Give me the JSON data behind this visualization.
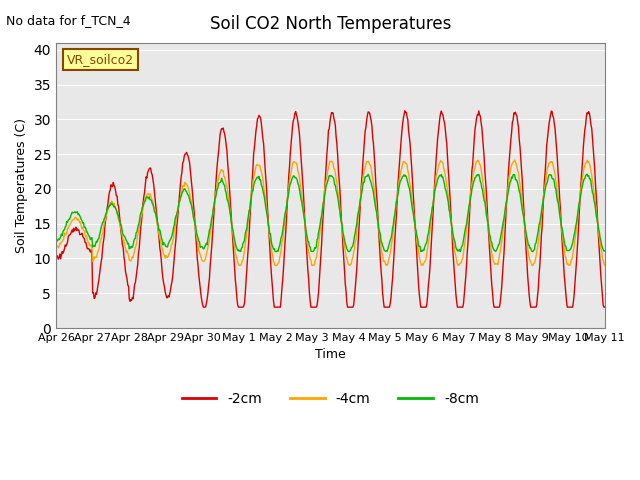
{
  "title": "Soil CO2 North Temperatures",
  "no_data_label": "No data for f_TCN_4",
  "ylabel": "Soil Temperatures (C)",
  "xlabel": "Time",
  "yticks": [
    0,
    5,
    10,
    15,
    20,
    25,
    30,
    35,
    40
  ],
  "ylim": [
    0,
    41
  ],
  "xtick_labels": [
    "Apr 26",
    "Apr 27",
    "Apr 28",
    "Apr 29",
    "Apr 30",
    "May 1",
    "May 2",
    "May 3",
    "May 4",
    "May 5",
    "May 6",
    "May 7",
    "May 8",
    "May 9",
    "May 10",
    "May 11"
  ],
  "legend_label": "VR_soilco2",
  "line_colors": {
    "2cm": "#dd0000",
    "4cm": "#ffa500",
    "8cm": "#00bb00"
  },
  "legend_entries": [
    "-2cm",
    "-4cm",
    "-8cm"
  ],
  "background_color": "#e8e8e8",
  "figure_background": "#ffffff"
}
